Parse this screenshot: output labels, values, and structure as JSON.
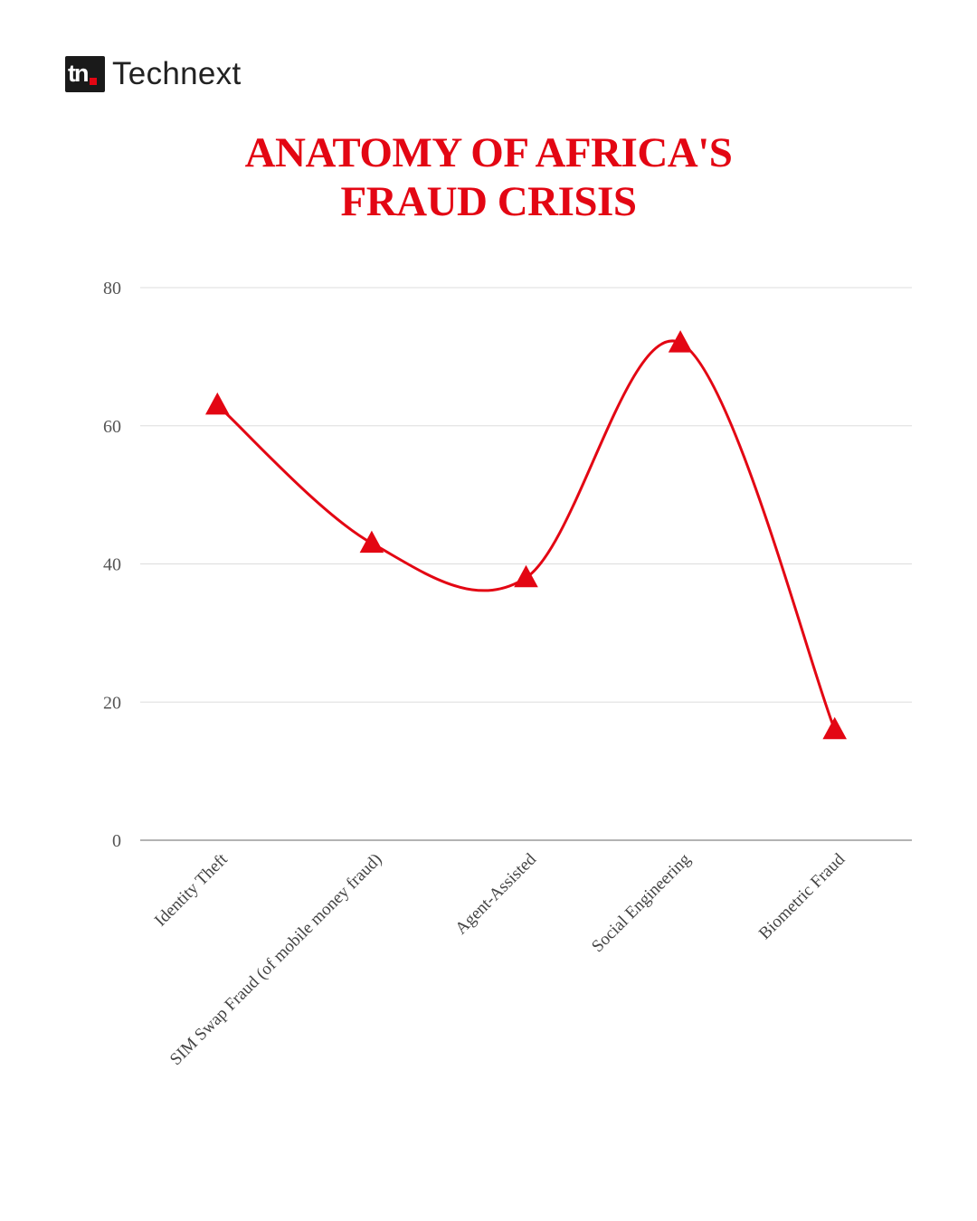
{
  "brand": {
    "mark": "tn",
    "name": "Technext"
  },
  "chart_data": {
    "type": "line",
    "title_lines": [
      "ANATOMY OF AFRICA'S",
      "FRAUD CRISIS"
    ],
    "categories": [
      "Identity Theft",
      "SIM Swap Fraud (of mobile money fraud)",
      "Agent-Assisted",
      "Social Engineering",
      "Biometric Fraud"
    ],
    "series": [
      {
        "values": [
          63,
          43,
          38,
          72,
          16
        ]
      }
    ],
    "yticks": [
      0,
      20,
      40,
      60,
      80
    ],
    "ylim": [
      0,
      80
    ],
    "xlabel": "",
    "ylabel": "",
    "smooth": true,
    "marker": "triangle",
    "grid": true,
    "legend": "none",
    "colors": {
      "line": "#e30613",
      "grid": "#dddddd",
      "axis": "#9a9a9a"
    }
  }
}
